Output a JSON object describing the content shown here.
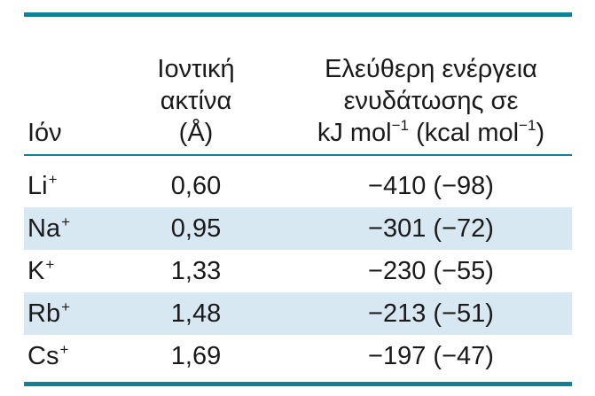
{
  "table": {
    "headers": {
      "ion": "Ιόν",
      "radius_line1": "Ιοντική",
      "radius_line2": "ακτίνα",
      "radius_line3": "(Å)",
      "energy_line1": "Ελεύθερη ενέργεια",
      "energy_line2": "ενυδάτωσης σε",
      "energy_line3_kj": "kJ mol",
      "energy_line3_sup1": "−1",
      "energy_line3_kcal": " (kcal mol",
      "energy_line3_sup2": "−1",
      "energy_line3_close": ")"
    },
    "rows": [
      {
        "ion": "Li",
        "charge": "+",
        "radius": "0,60",
        "energy": "−410 (−98)"
      },
      {
        "ion": "Na",
        "charge": "+",
        "radius": "0,95",
        "energy": "−301 (−72)"
      },
      {
        "ion": "K",
        "charge": "+",
        "radius": "1,33",
        "energy": "−230 (−55)"
      },
      {
        "ion": "Rb",
        "charge": "+",
        "radius": "1,48",
        "energy": "−213 (−51)"
      },
      {
        "ion": "Cs",
        "charge": "+",
        "radius": "1,69",
        "energy": "−197 (−47)"
      }
    ],
    "colors": {
      "rule": "#13809a",
      "shade": "#d8e8f3"
    }
  }
}
